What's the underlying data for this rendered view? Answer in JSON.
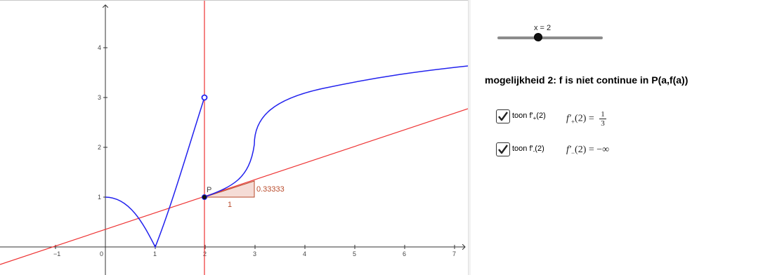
{
  "graph": {
    "x_ticks": [
      "−1",
      "0",
      "1",
      "2",
      "3",
      "4",
      "5",
      "6",
      "7"
    ],
    "y_ticks": [
      "1",
      "2",
      "3",
      "4"
    ],
    "point_label": "P",
    "slope_triangle_run": "1",
    "slope_triangle_rise": "0.33333",
    "colors": {
      "curve": "#2222ee",
      "tangent": "#ee3333",
      "vertical": "#ee3333",
      "triangle": "#b84a2a"
    }
  },
  "slider": {
    "label": "x  = 2",
    "value": 2
  },
  "heading": "mogelijkheid 2: f is niet continue in P(a,f(a))",
  "checkboxes": [
    {
      "text_prefix": "toon f'",
      "text_sub": "+",
      "text_suffix": "(2)",
      "checked": true,
      "formula_lhs": "f′",
      "formula_sub": "+",
      "formula_mid": "(2) =",
      "formula_num": "1",
      "formula_den": "3"
    },
    {
      "text_prefix": "toon f'",
      "text_sub": "-",
      "text_suffix": "(2)",
      "checked": true,
      "formula_lhs": "f′",
      "formula_sub": "−",
      "formula_mid": "(2) = −∞"
    }
  ]
}
